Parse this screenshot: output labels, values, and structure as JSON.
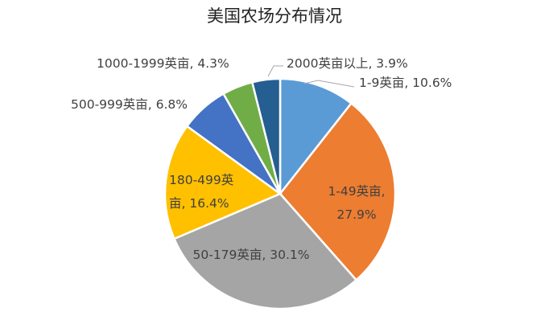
{
  "chart_data": {
    "type": "pie",
    "title": "美国农场分布情况",
    "start": "top",
    "direction": "clockwise",
    "categories": [
      "1-9英亩",
      "1-49英亩",
      "50-179英亩",
      "180-499英亩",
      "500-999英亩",
      "1000-1999英亩",
      "2000英亩以上"
    ],
    "values": [
      10.6,
      27.9,
      30.1,
      16.4,
      6.8,
      4.3,
      3.9
    ],
    "unit": "%",
    "colors": [
      "#5B9BD5",
      "#ED7D31",
      "#A5A5A5",
      "#FFC000",
      "#4472C4",
      "#70AD47",
      "#255E91"
    ],
    "data_labels": [
      [
        "1-9英亩, 10.6%"
      ],
      [
        "1-49英亩,",
        "27.9%"
      ],
      [
        "50-179英亩, 30.1%"
      ],
      [
        "180-499英",
        "亩, 16.4%"
      ],
      [
        "500-999英亩, 6.8%"
      ],
      [
        "1000-1999英亩, 4.3%"
      ],
      [
        "2000英亩以上, 3.9%"
      ]
    ],
    "legend": "none"
  }
}
